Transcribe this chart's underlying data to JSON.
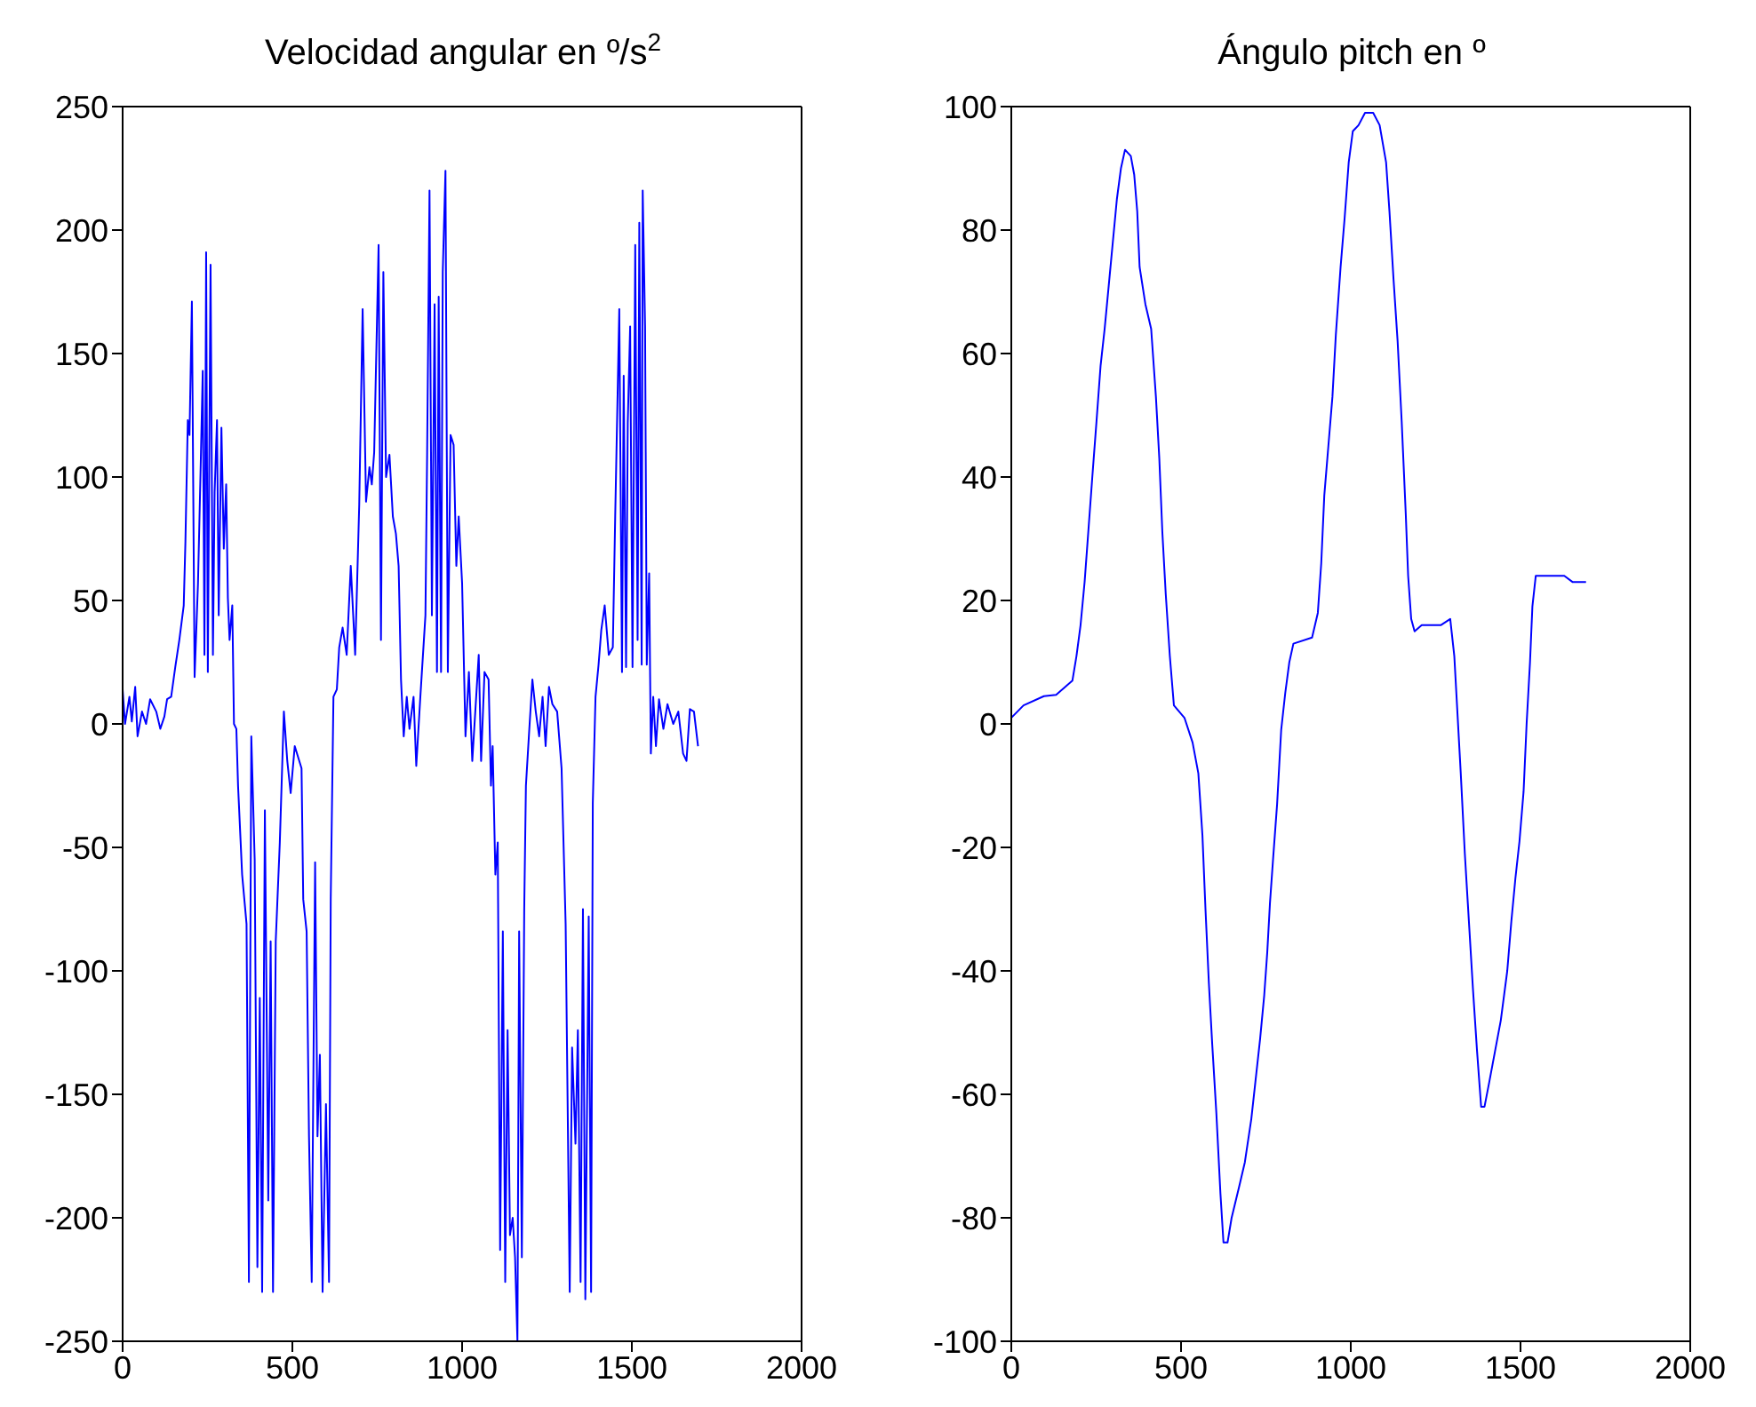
{
  "chart_data": [
    {
      "type": "line",
      "title": "Velocidad angular en º/s$^{2}$",
      "xlim": [
        0,
        2000
      ],
      "xticks": [
        0,
        500,
        1000,
        1500,
        2000
      ],
      "ylim": [
        -250,
        250
      ],
      "yticks": [
        -250,
        -200,
        -150,
        -100,
        -50,
        0,
        50,
        100,
        150,
        200,
        250
      ],
      "x": [
        0,
        7,
        20,
        27,
        37,
        44,
        57,
        69,
        81,
        99,
        111,
        123,
        131,
        143,
        155,
        167,
        180,
        185,
        192,
        197,
        204,
        212,
        222,
        229,
        236,
        241,
        246,
        251,
        259,
        266,
        271,
        278,
        283,
        291,
        298,
        305,
        310,
        315,
        323,
        328,
        335,
        340,
        352,
        365,
        372,
        379,
        389,
        397,
        404,
        411,
        419,
        429,
        436,
        443,
        451,
        463,
        475,
        485,
        495,
        507,
        527,
        532,
        542,
        549,
        557,
        567,
        574,
        581,
        589,
        599,
        608,
        613,
        621,
        631,
        638,
        648,
        660,
        672,
        685,
        697,
        707,
        717,
        727,
        734,
        741,
        754,
        761,
        768,
        776,
        786,
        796,
        805,
        813,
        820,
        828,
        837,
        845,
        857,
        865,
        877,
        892,
        897,
        904,
        911,
        919,
        926,
        931,
        938,
        943,
        951,
        958,
        966,
        975,
        983,
        990,
        1000,
        1010,
        1020,
        1030,
        1049,
        1056,
        1066,
        1078,
        1085,
        1090,
        1098,
        1105,
        1112,
        1120,
        1127,
        1134,
        1141,
        1149,
        1156,
        1163,
        1168,
        1176,
        1183,
        1188,
        1198,
        1207,
        1217,
        1227,
        1237,
        1246,
        1256,
        1266,
        1280,
        1293,
        1305,
        1317,
        1324,
        1334,
        1341,
        1349,
        1356,
        1363,
        1373,
        1380,
        1385,
        1393,
        1402,
        1410,
        1420,
        1432,
        1444,
        1451,
        1463,
        1471,
        1476,
        1483,
        1488,
        1495,
        1502,
        1510,
        1517,
        1522,
        1529,
        1532,
        1539,
        1544,
        1551,
        1556,
        1563,
        1571,
        1580,
        1593,
        1605,
        1622,
        1637,
        1651,
        1661,
        1671,
        1683,
        1695
      ],
      "series": [
        {
          "color": "#0000ff",
          "values": [
            14,
            0,
            11,
            1,
            15,
            -5,
            5,
            0,
            10,
            5,
            -2,
            3,
            10,
            11,
            23,
            34,
            48,
            74,
            123,
            117,
            171,
            19,
            57,
            99,
            143,
            28,
            191,
            21,
            186,
            28,
            94,
            123,
            44,
            120,
            71,
            97,
            51,
            34,
            48,
            0,
            -2,
            -25,
            -61,
            -81,
            -226,
            -5,
            -55,
            -220,
            -111,
            -230,
            -35,
            -193,
            -88,
            -230,
            -88,
            -48,
            5,
            -15,
            -28,
            -9,
            -18,
            -71,
            -84,
            -167,
            -226,
            -56,
            -167,
            -134,
            -230,
            -154,
            -226,
            -71,
            11,
            14,
            31,
            39,
            28,
            64,
            28,
            89,
            168,
            90,
            104,
            97,
            110,
            194,
            34,
            183,
            100,
            109,
            84,
            77,
            64,
            18,
            -5,
            11,
            -2,
            11,
            -17,
            11,
            44,
            110,
            216,
            44,
            170,
            21,
            173,
            21,
            183,
            224,
            21,
            117,
            113,
            64,
            84,
            57,
            -5,
            21,
            -15,
            28,
            -15,
            21,
            18,
            -25,
            -9,
            -61,
            -48,
            -213,
            -84,
            -226,
            -124,
            -207,
            -200,
            -216,
            -250,
            -84,
            -216,
            -75,
            -25,
            -2,
            18,
            5,
            -5,
            11,
            -9,
            15,
            8,
            5,
            -18,
            -81,
            -230,
            -131,
            -170,
            -124,
            -226,
            -75,
            -233,
            -78,
            -230,
            -32,
            11,
            24,
            38,
            48,
            28,
            31,
            84,
            168,
            21,
            141,
            23,
            122,
            161,
            23,
            194,
            34,
            203,
            24,
            216,
            161,
            24,
            61,
            -12,
            11,
            -9,
            10,
            -2,
            8,
            0,
            5,
            -12,
            -15,
            6,
            5,
            -9
          ]
        }
      ]
    },
    {
      "type": "line",
      "title": "Ángulo pitch en º",
      "xlim": [
        0,
        2000
      ],
      "xticks": [
        0,
        500,
        1000,
        1500,
        2000
      ],
      "ylim": [
        -100,
        100
      ],
      "yticks": [
        -100,
        -80,
        -60,
        -40,
        -20,
        0,
        20,
        40,
        60,
        80,
        100
      ],
      "x": [
        0,
        36,
        96,
        132,
        180,
        192,
        204,
        216,
        228,
        240,
        251,
        263,
        275,
        287,
        299,
        311,
        323,
        335,
        352,
        362,
        371,
        378,
        395,
        412,
        426,
        436,
        445,
        455,
        467,
        479,
        510,
        534,
        551,
        563,
        572,
        582,
        592,
        604,
        616,
        625,
        637,
        649,
        671,
        688,
        707,
        719,
        733,
        745,
        754,
        762,
        771,
        783,
        795,
        807,
        819,
        831,
        886,
        903,
        913,
        922,
        934,
        946,
        956,
        970,
        982,
        994,
        1006,
        1023,
        1042,
        1066,
        1085,
        1104,
        1114,
        1126,
        1138,
        1150,
        1162,
        1169,
        1178,
        1188,
        1209,
        1265,
        1293,
        1305,
        1315,
        1324,
        1336,
        1348,
        1360,
        1372,
        1384,
        1394,
        1408,
        1425,
        1442,
        1461,
        1473,
        1485,
        1497,
        1509,
        1518,
        1528,
        1535,
        1545,
        1569,
        1593,
        1629,
        1653,
        1693
      ],
      "series": [
        {
          "color": "#0000ff",
          "values": [
            1,
            3,
            4.5,
            4.7,
            7,
            11,
            16,
            23,
            32,
            41,
            49,
            58,
            64,
            71,
            78,
            85,
            90,
            93,
            92,
            89,
            83,
            74,
            68,
            64,
            53,
            43,
            31,
            21,
            11,
            3,
            1,
            -3,
            -8,
            -18,
            -30,
            -42,
            -52,
            -63,
            -76,
            -84,
            -84,
            -80,
            -75,
            -71,
            -64,
            -58,
            -51,
            -44,
            -37,
            -29,
            -22,
            -13,
            -1,
            5,
            10,
            13,
            14,
            18,
            26,
            37,
            45,
            53,
            63,
            74,
            82,
            91,
            96,
            97,
            99,
            99,
            97,
            91,
            83,
            72,
            62,
            49,
            34,
            24,
            17,
            15,
            16,
            16,
            17,
            11,
            1,
            -8,
            -21,
            -32,
            -43,
            -53,
            -62,
            -62,
            -58,
            -53,
            -48,
            -40,
            -32,
            -25,
            -19,
            -11,
            0,
            10,
            19,
            24,
            24,
            24,
            24,
            23,
            23
          ]
        }
      ]
    }
  ]
}
